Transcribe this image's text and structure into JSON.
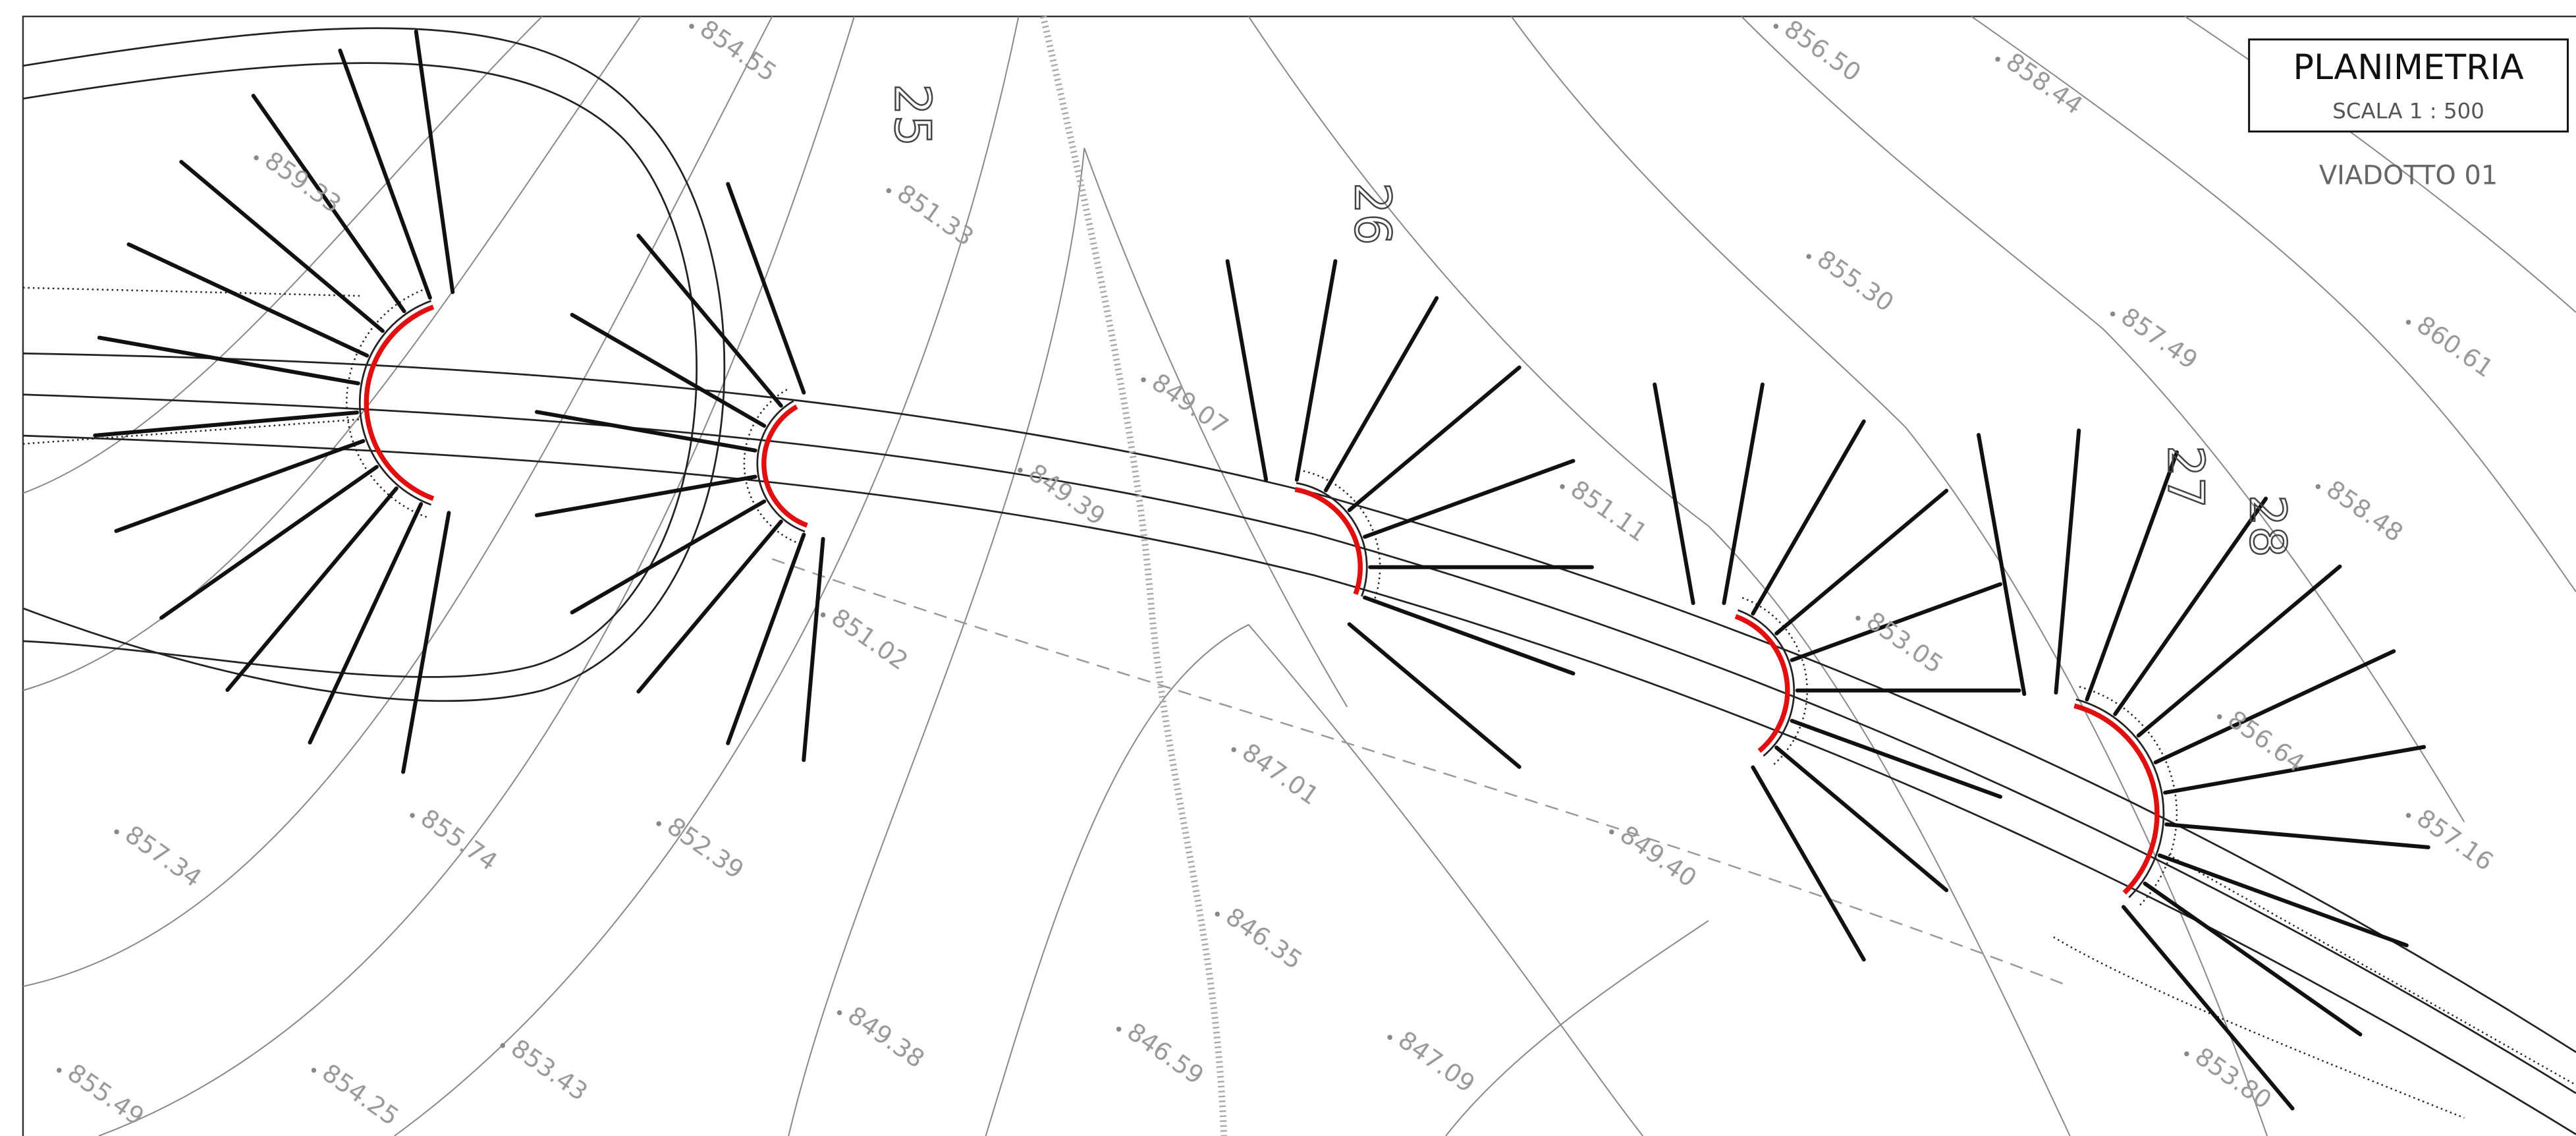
{
  "title_block": {
    "title": "PLANIMETRIA",
    "scale": "SCALA 1 : 500",
    "project": "VIADOTTO 01"
  },
  "stations": [
    "25",
    "26",
    "27",
    "28"
  ],
  "elevations": [
    "855.49",
    "854.25",
    "853.43",
    "857.34",
    "855.74",
    "852.39",
    "849.38",
    "846.59",
    "846.35",
    "847.09",
    "847.01",
    "849.40",
    "849.07",
    "849.39",
    "851.33",
    "854.55",
    "859.33",
    "855.30",
    "857.49",
    "860.61",
    "858.48",
    "858.44",
    "856.50",
    "851.11",
    "853.05",
    "857.16",
    "856.64",
    "853.80",
    "851.02"
  ]
}
